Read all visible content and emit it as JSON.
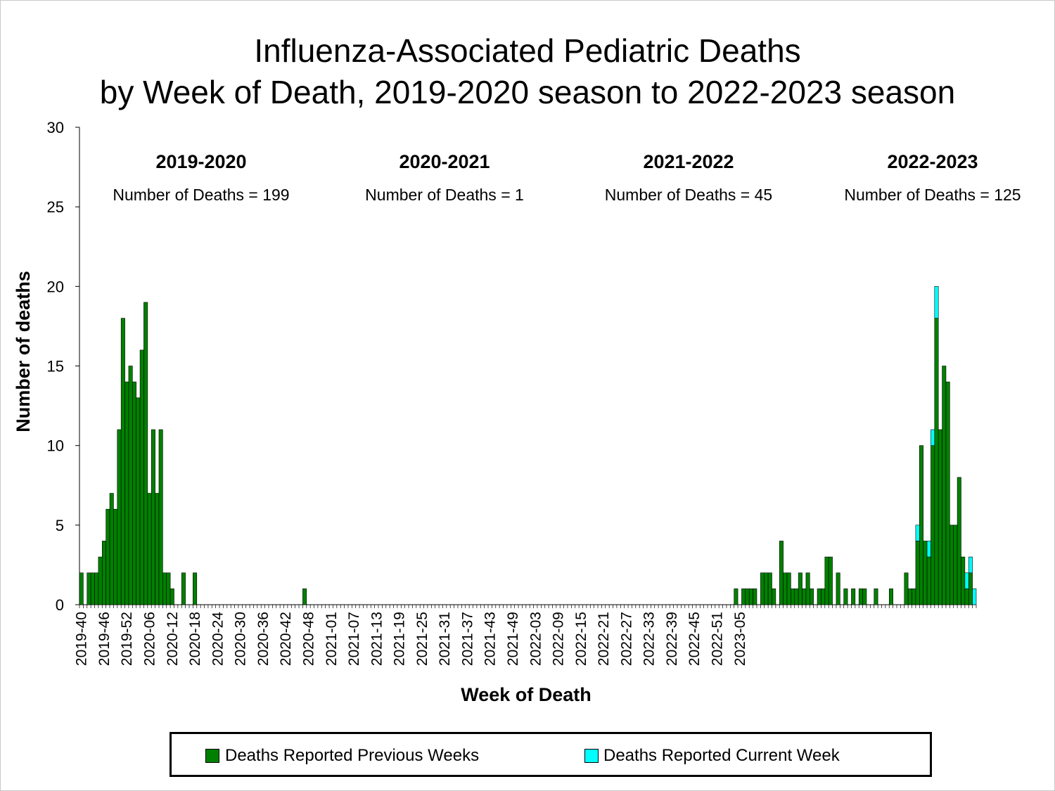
{
  "chart_data": {
    "type": "bar",
    "stacked": true,
    "title_lines": [
      "Influenza-Associated Pediatric Deaths",
      "by Week of Death, 2019-2020 season to 2022-2023 season"
    ],
    "xlabel": "Week of Death",
    "ylabel": "Number of deaths",
    "ylim": [
      0,
      30
    ],
    "yticks": [
      0,
      5,
      10,
      15,
      20,
      25,
      30
    ],
    "x_tick_labels": [
      "2019-40",
      "2019-46",
      "2019-52",
      "2020-06",
      "2020-12",
      "2020-18",
      "2020-24",
      "2020-30",
      "2020-36",
      "2020-42",
      "2020-48",
      "2021-01",
      "2021-07",
      "2021-13",
      "2021-19",
      "2021-25",
      "2021-31",
      "2021-37",
      "2021-43",
      "2021-49",
      "2022-03",
      "2022-09",
      "2022-15",
      "2022-21",
      "2022-27",
      "2022-33",
      "2022-39",
      "2022-45",
      "2022-51",
      "2023-05"
    ],
    "x_tick_every": 6,
    "seasons": [
      {
        "label": "2019-2020",
        "deaths_text": "Number of Deaths = 199"
      },
      {
        "label": "2020-2021",
        "deaths_text": "Number of Deaths = 1"
      },
      {
        "label": "2021-2022",
        "deaths_text": "Number of Deaths = 45"
      },
      {
        "label": "2022-2023",
        "deaths_text": "Number of Deaths = 125"
      }
    ],
    "series": [
      {
        "name": "Deaths Reported Previous Weeks",
        "color": "#008000",
        "values": [
          2,
          0,
          2,
          2,
          2,
          3,
          4,
          6,
          7,
          6,
          11,
          18,
          14,
          15,
          14,
          13,
          16,
          19,
          7,
          11,
          7,
          11,
          2,
          2,
          1,
          0,
          0,
          2,
          0,
          0,
          2,
          0,
          0,
          0,
          0,
          0,
          0,
          0,
          0,
          0,
          0,
          0,
          0,
          0,
          0,
          0,
          0,
          0,
          0,
          0,
          0,
          0,
          0,
          0,
          0,
          0,
          0,
          0,
          0,
          1,
          0,
          0,
          0,
          0,
          0,
          0,
          0,
          0,
          0,
          0,
          0,
          0,
          0,
          0,
          0,
          0,
          0,
          0,
          0,
          0,
          0,
          0,
          0,
          0,
          0,
          0,
          0,
          0,
          0,
          0,
          0,
          0,
          0,
          0,
          0,
          0,
          0,
          0,
          0,
          0,
          0,
          0,
          0,
          0,
          0,
          0,
          0,
          0,
          0,
          0,
          0,
          0,
          0,
          0,
          0,
          0,
          0,
          0,
          0,
          0,
          0,
          0,
          0,
          0,
          0,
          0,
          0,
          0,
          0,
          0,
          0,
          0,
          0,
          0,
          0,
          0,
          0,
          0,
          0,
          0,
          0,
          0,
          0,
          0,
          0,
          0,
          0,
          0,
          0,
          0,
          0,
          0,
          0,
          0,
          0,
          0,
          0,
          0,
          0,
          0,
          0,
          0,
          0,
          0,
          0,
          0,
          0,
          0,
          0,
          0,
          0,
          0,
          0,
          1,
          0,
          1,
          1,
          1,
          1,
          0,
          2,
          2,
          2,
          1,
          0,
          4,
          2,
          2,
          1,
          1,
          2,
          1,
          2,
          1,
          0,
          1,
          1,
          3,
          3,
          0,
          2,
          0,
          1,
          0,
          1,
          0,
          1,
          1,
          0,
          0,
          1,
          0,
          0,
          0,
          1,
          0,
          0,
          0,
          2,
          1,
          1,
          4,
          10,
          4,
          3,
          10,
          18,
          11,
          15,
          14,
          5,
          5,
          8,
          3,
          1,
          2,
          0
        ]
      },
      {
        "name": "Deaths Reported Current Week",
        "color": "#00ffff",
        "values": [
          0,
          0,
          0,
          0,
          0,
          0,
          0,
          0,
          0,
          0,
          0,
          0,
          0,
          0,
          0,
          0,
          0,
          0,
          0,
          0,
          0,
          0,
          0,
          0,
          0,
          0,
          0,
          0,
          0,
          0,
          0,
          0,
          0,
          0,
          0,
          0,
          0,
          0,
          0,
          0,
          0,
          0,
          0,
          0,
          0,
          0,
          0,
          0,
          0,
          0,
          0,
          0,
          0,
          0,
          0,
          0,
          0,
          0,
          0,
          0,
          0,
          0,
          0,
          0,
          0,
          0,
          0,
          0,
          0,
          0,
          0,
          0,
          0,
          0,
          0,
          0,
          0,
          0,
          0,
          0,
          0,
          0,
          0,
          0,
          0,
          0,
          0,
          0,
          0,
          0,
          0,
          0,
          0,
          0,
          0,
          0,
          0,
          0,
          0,
          0,
          0,
          0,
          0,
          0,
          0,
          0,
          0,
          0,
          0,
          0,
          0,
          0,
          0,
          0,
          0,
          0,
          0,
          0,
          0,
          0,
          0,
          0,
          0,
          0,
          0,
          0,
          0,
          0,
          0,
          0,
          0,
          0,
          0,
          0,
          0,
          0,
          0,
          0,
          0,
          0,
          0,
          0,
          0,
          0,
          0,
          0,
          0,
          0,
          0,
          0,
          0,
          0,
          0,
          0,
          0,
          0,
          0,
          0,
          0,
          0,
          0,
          0,
          0,
          0,
          0,
          0,
          0,
          0,
          0,
          0,
          0,
          0,
          0,
          0,
          0,
          0,
          0,
          0,
          0,
          0,
          0,
          0,
          0,
          0,
          0,
          0,
          0,
          0,
          0,
          0,
          0,
          0,
          0,
          0,
          0,
          0,
          0,
          0,
          0,
          0,
          0,
          0,
          0,
          0,
          0,
          0,
          0,
          0,
          0,
          0,
          0,
          0,
          0,
          0,
          0,
          0,
          0,
          0,
          0,
          0,
          0,
          1,
          0,
          0,
          1,
          1,
          2,
          0,
          0,
          0,
          0,
          0,
          0,
          0,
          1,
          1,
          1
        ]
      }
    ],
    "legend": {
      "position": "bottom",
      "items": [
        {
          "label": "Deaths Reported Previous Weeks",
          "color": "#008000"
        },
        {
          "label": "Deaths Reported Current Week",
          "color": "#00ffff"
        }
      ]
    },
    "grid": false
  }
}
